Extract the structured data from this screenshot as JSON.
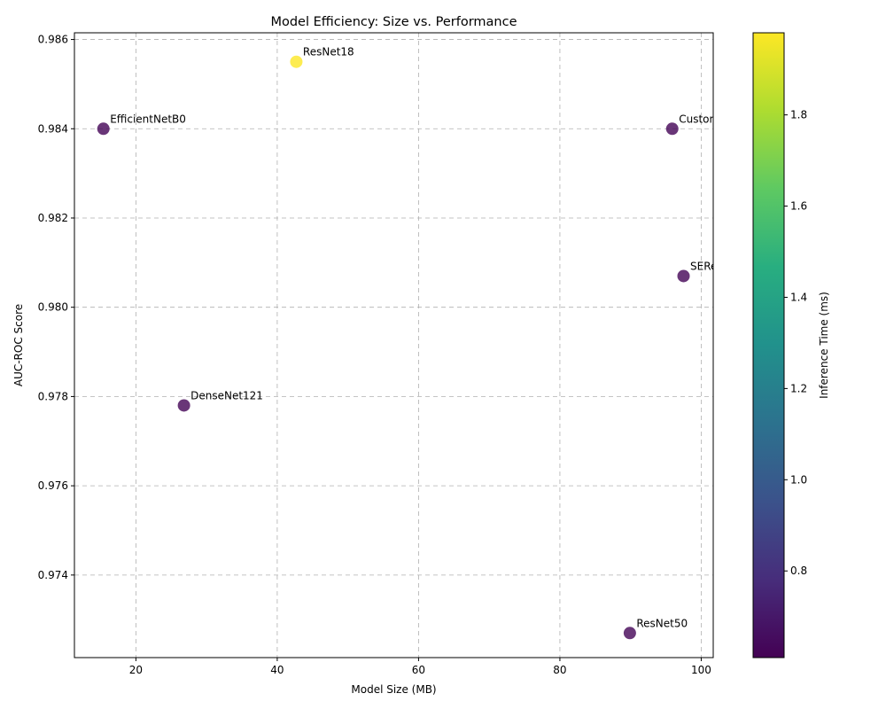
{
  "chart_data": {
    "type": "scatter",
    "title": "Model Efficiency: Size vs. Performance",
    "xlabel": "Model Size (MB)",
    "ylabel": "AUC-ROC Score",
    "xlim": [
      11.3,
      101.7
    ],
    "ylim": [
      0.97215,
      0.98615
    ],
    "xticks": [
      20,
      40,
      60,
      80,
      100
    ],
    "yticks": [
      0.974,
      0.976,
      0.978,
      0.98,
      0.982,
      0.984,
      0.986
    ],
    "grid": true,
    "points": [
      {
        "label": "EfficientNetB0",
        "x": 15.4,
        "y": 0.984,
        "inference_ms": 0.62
      },
      {
        "label": "DenseNet121",
        "x": 26.8,
        "y": 0.9778,
        "inference_ms": 0.62
      },
      {
        "label": "ResNet18",
        "x": 42.7,
        "y": 0.9855,
        "inference_ms": 1.98
      },
      {
        "label": "ResNet50",
        "x": 89.9,
        "y": 0.9727,
        "inference_ms": 0.62
      },
      {
        "label": "Custom Model",
        "x": 95.9,
        "y": 0.984,
        "inference_ms": 0.62
      },
      {
        "label": "SEResNeXt",
        "x": 97.5,
        "y": 0.9807,
        "inference_ms": 0.62
      }
    ],
    "colorbar": {
      "label": "Inference Time (ms)",
      "colormap": "viridis",
      "range": [
        0.61,
        1.98
      ],
      "ticks": [
        0.8,
        1.0,
        1.2,
        1.4,
        1.6,
        1.8
      ]
    },
    "marker_alpha": 0.8
  }
}
